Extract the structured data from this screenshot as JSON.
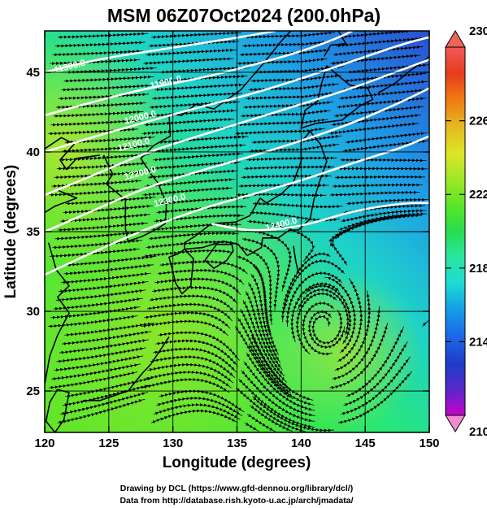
{
  "title": "MSM 06Z07Oct2024 (200.0hPa)",
  "xlabel": "Longitude (degrees)",
  "ylabel": "Latitude  (degrees)",
  "credits": {
    "line1": "Drawing by DCL (https://www.gfd-dennou.org/library/dcl/)",
    "line2": "Data from http://database.rish.kyoto-u.ac.jp/arch/jmadata/"
  },
  "map": {
    "lon_range": [
      120,
      150
    ],
    "lat_range": [
      22.4,
      47.6
    ],
    "lon_ticks": [
      120,
      125,
      130,
      135,
      140,
      145,
      150
    ],
    "lat_ticks": [
      25,
      30,
      35,
      40,
      45
    ],
    "grid": true,
    "field": "temperature shading with streamlines and geopotential height contours",
    "coastline_color": "#000000",
    "contour_color": "#ffffff"
  },
  "colorbar": {
    "min": 210,
    "max": 230,
    "ticks": [
      210,
      214,
      218,
      222,
      226,
      230
    ],
    "colors": [
      "#c800c8",
      "#5a28c8",
      "#1e3cc8",
      "#1e64e6",
      "#14a0e6",
      "#1edcd2",
      "#28e6a0",
      "#28dc50",
      "#5ae628",
      "#a0e628",
      "#dce628",
      "#e6b41e",
      "#f07814",
      "#e63c1e",
      "#f05a5a"
    ],
    "min_arrow_color": "#f08cd2",
    "max_arrow_color": "#f0645a"
  },
  "contours": [
    {
      "label": "11900.0",
      "label_lon": 122,
      "label_lat": 45.2,
      "points": [
        [
          120,
          45.0
        ],
        [
          124,
          45.8
        ],
        [
          128,
          46.3
        ],
        [
          132,
          46.8
        ],
        [
          136,
          47.3
        ],
        [
          138,
          47.6
        ]
      ]
    },
    {
      "label": "11900.0",
      "label_lon": 129.5,
      "label_lat": 44.2,
      "points": [
        [
          120,
          42.3
        ],
        [
          124,
          43.2
        ],
        [
          128,
          44.0
        ],
        [
          132,
          44.6
        ],
        [
          136,
          45.4
        ],
        [
          140,
          46.3
        ],
        [
          143,
          47.2
        ],
        [
          144,
          47.6
        ]
      ]
    },
    {
      "label": "12000.0",
      "label_lon": 127.5,
      "label_lat": 42.0,
      "points": [
        [
          120,
          40.0
        ],
        [
          124,
          41.0
        ],
        [
          128,
          41.9
        ],
        [
          132,
          42.8
        ],
        [
          136,
          43.6
        ],
        [
          140,
          44.6
        ],
        [
          144,
          45.7
        ],
        [
          148,
          46.8
        ],
        [
          150,
          47.2
        ]
      ]
    },
    {
      "label": "12100.0",
      "label_lon": 127,
      "label_lat": 40.3,
      "points": [
        [
          120,
          37.3
        ],
        [
          124,
          38.6
        ],
        [
          128,
          40.0
        ],
        [
          132,
          41.0
        ],
        [
          136,
          42.0
        ],
        [
          140,
          43.0
        ],
        [
          144,
          44.0
        ],
        [
          148,
          45.2
        ],
        [
          150,
          45.8
        ]
      ]
    },
    {
      "label": "12200.0",
      "label_lon": 127.5,
      "label_lat": 38.5,
      "points": [
        [
          120,
          35.0
        ],
        [
          124,
          36.4
        ],
        [
          128,
          37.8
        ],
        [
          132,
          38.8
        ],
        [
          136,
          39.7
        ],
        [
          140,
          40.7
        ],
        [
          144,
          41.8
        ],
        [
          148,
          43.2
        ],
        [
          150,
          44.0
        ]
      ]
    },
    {
      "label": "12300.0",
      "label_lon": 129.8,
      "label_lat": 36.8,
      "points": [
        [
          120,
          32.3
        ],
        [
          124,
          33.8
        ],
        [
          128,
          35.2
        ],
        [
          132,
          36.4
        ],
        [
          136,
          37.3
        ],
        [
          140,
          38.2
        ],
        [
          144,
          39.3
        ],
        [
          148,
          40.3
        ],
        [
          150,
          41.0
        ]
      ]
    },
    {
      "label": "12400.0",
      "label_lon": 138.5,
      "label_lat": 35.3,
      "points": [
        [
          133,
          35.5
        ],
        [
          136,
          35.0
        ],
        [
          140,
          35.3
        ],
        [
          144,
          36.3
        ],
        [
          148,
          36.8
        ],
        [
          150,
          36.8
        ]
      ]
    }
  ]
}
